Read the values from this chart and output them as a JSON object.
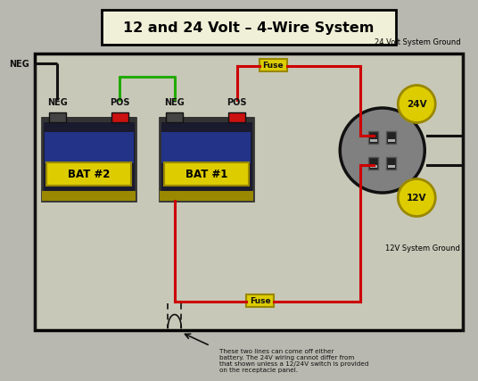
{
  "title": "12 and 24 Volt – 4-Wire System",
  "outer_bg": "#b8b8b0",
  "diagram_bg": "#c8c8b8",
  "title_bg": "#f0f0d8",
  "bat2_label": "BAT #2",
  "bat1_label": "BAT #1",
  "neg_label": "NEG",
  "pos_label": "POS",
  "fuse_label": "Fuse",
  "label_24v": "24V",
  "label_12v": "12V",
  "label_24v_ground": "24 Volt System Ground",
  "label_12v_ground": "12V System Ground",
  "note_text": "These two lines can come off either\nbattery. The 24V wiring cannot differ from\nthat shown unless a 12/24V switch is provided\non the receptacle panel.",
  "red_color": "#cc0000",
  "green_color": "#22aa00",
  "black_color": "#111111",
  "yellow_color": "#ddcc00",
  "dark_yellow": "#998800",
  "gray_color": "#808080",
  "bat_dark": "#1a1a30",
  "bat_blue": "#2233aa",
  "wire_lw": 2.2
}
